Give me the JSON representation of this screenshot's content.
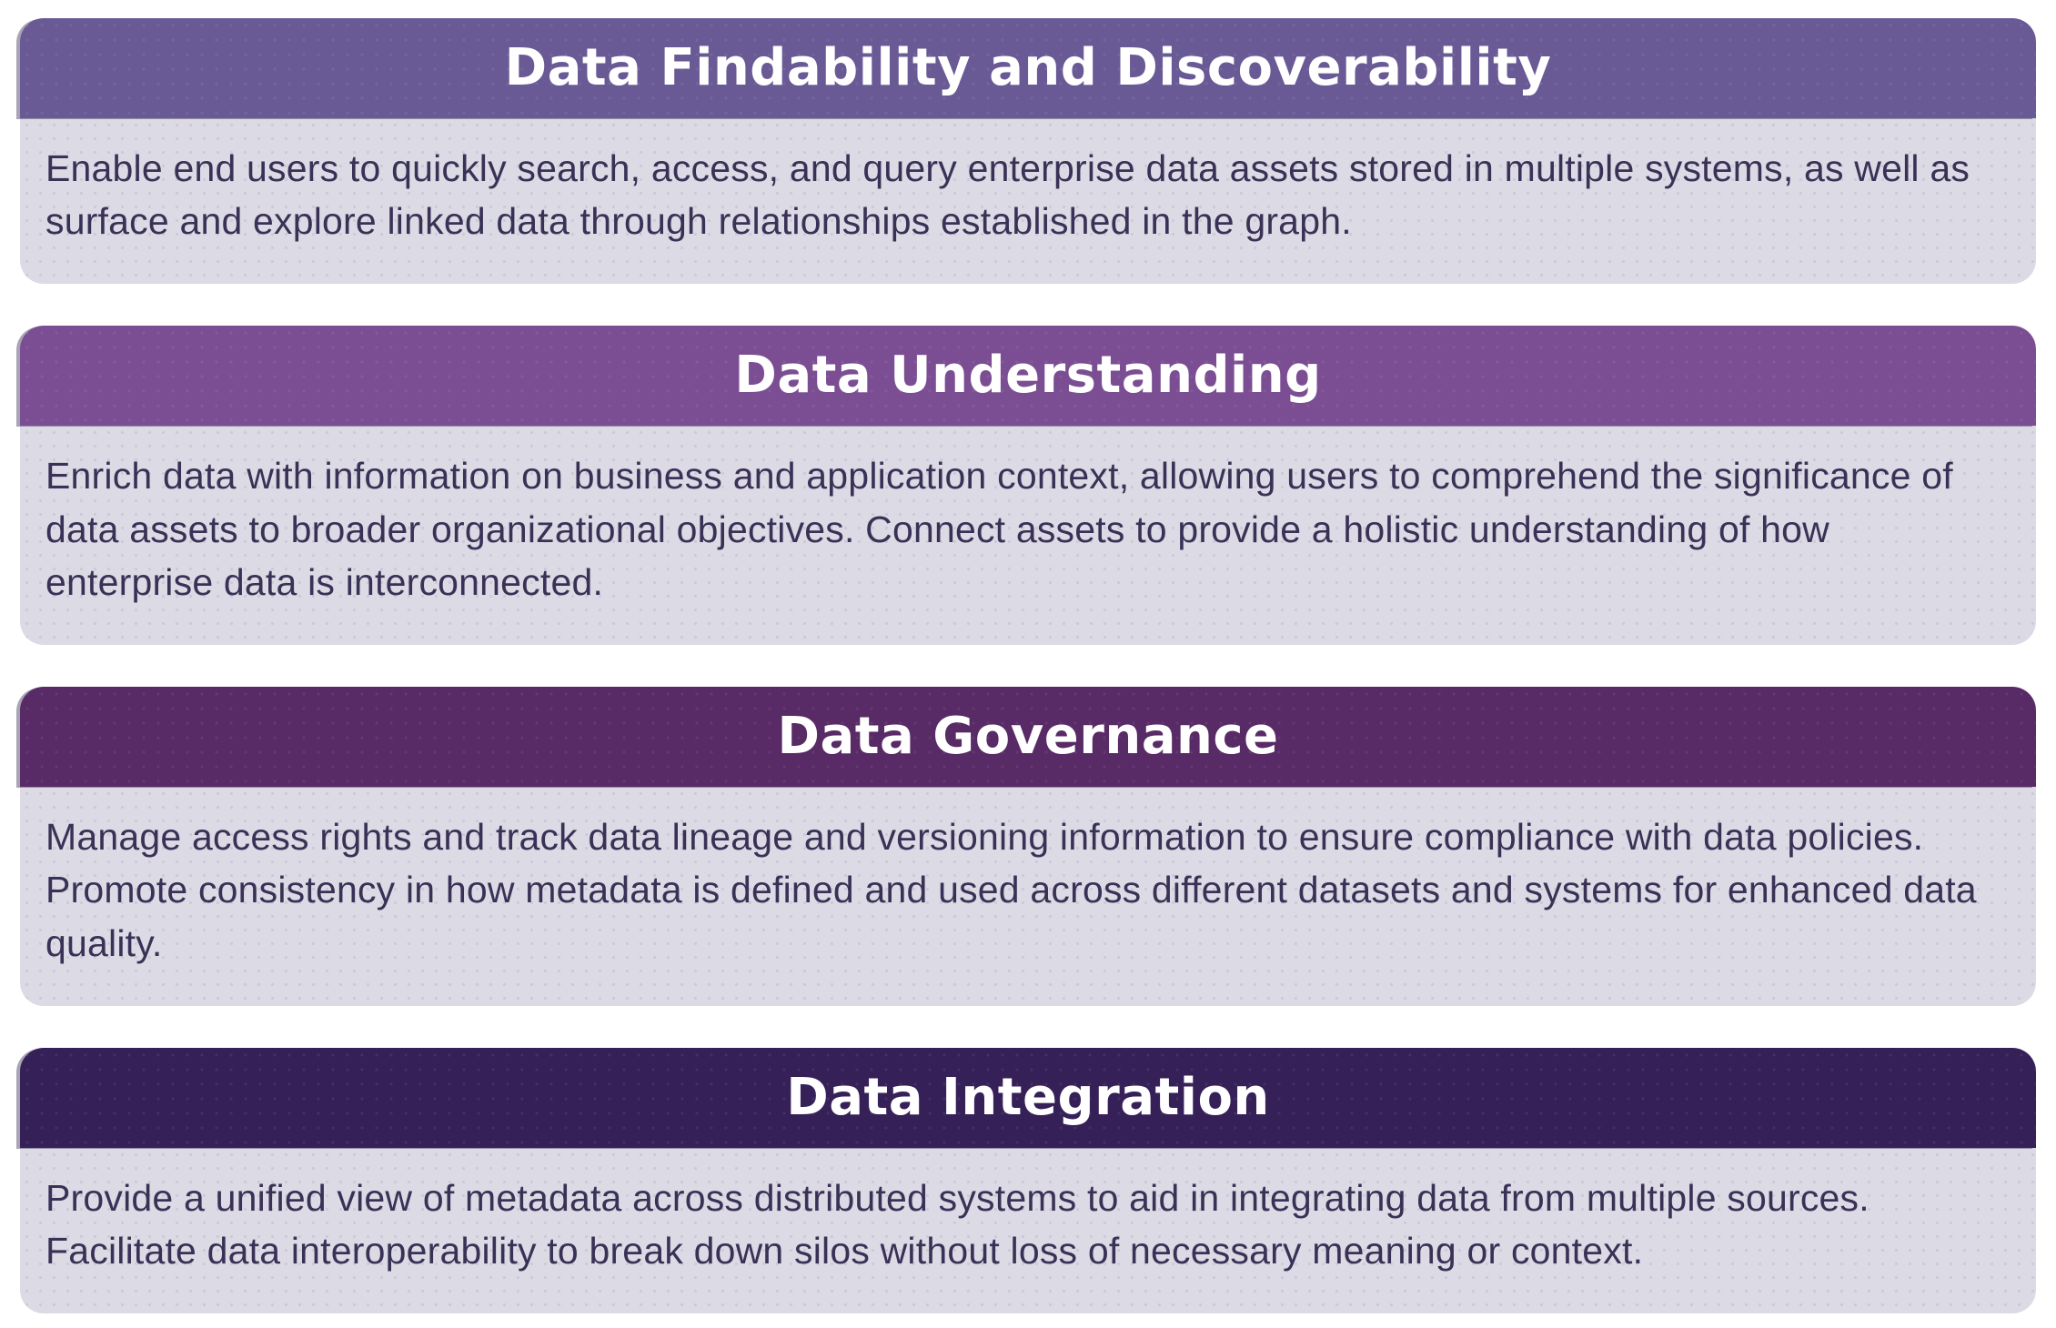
{
  "colors": {
    "page_background": "#ffffff",
    "body_background": "#dcdae4",
    "body_text": "#3a3156",
    "title_text": "#ffffff"
  },
  "sections": [
    {
      "title": "Data Findability and Discoverability",
      "description": "Enable end users to quickly search, access, and query enterprise data assets stored in multiple systems, as well as surface and explore linked data through relationships established in the graph.",
      "header_color": "#695a95"
    },
    {
      "title": "Data Understanding",
      "description": "Enrich data with information on business and application context, allowing users to comprehend the significance of data assets to broader organizational objectives. Connect assets to provide a holistic understanding of how enterprise data is interconnected.",
      "header_color": "#7b4e93"
    },
    {
      "title": "Data Governance",
      "description": "Manage access rights and track data lineage and versioning information to ensure compliance with data policies. Promote consistency in how metadata is defined and used across different datasets and systems for enhanced data quality.",
      "header_color": "#582a66"
    },
    {
      "title": "Data Integration",
      "description": "Provide a unified view of metadata across distributed systems to aid in integrating data from multiple sources. Facilitate data interoperability to break down silos without loss of necessary meaning or context.",
      "header_color": "#362058"
    }
  ]
}
